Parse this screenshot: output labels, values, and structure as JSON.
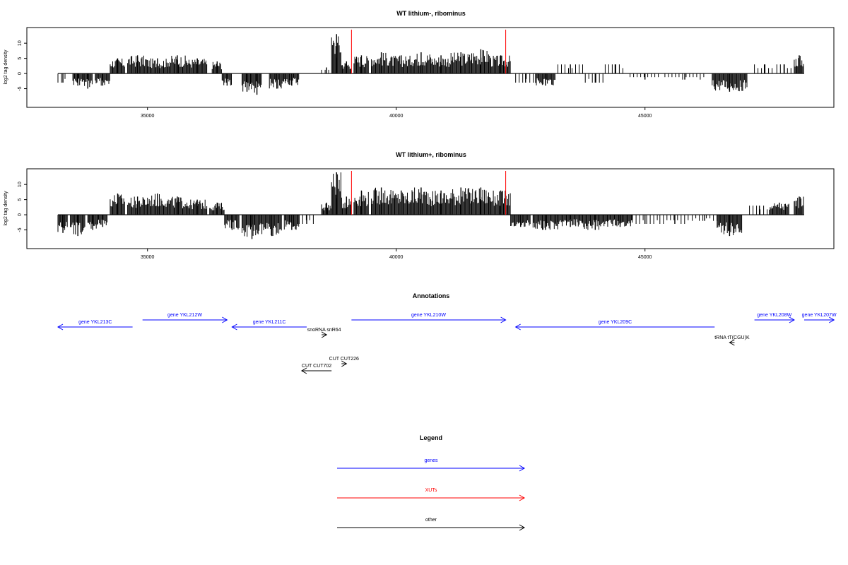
{
  "chart_data": [
    {
      "type": "bar",
      "title": "WT lithium-, ribominus",
      "xlabel": "",
      "ylabel": "log2 tag density",
      "xlim": [
        33200,
        48200
      ],
      "ylim": [
        -10,
        14
      ],
      "xticks": [
        35000,
        40000,
        45000
      ],
      "yticks": [
        -5,
        0,
        5,
        10
      ],
      "markers": [
        {
          "x": 39100,
          "color": "#ff0000"
        },
        {
          "x": 42200,
          "color": "#ff0000"
        }
      ],
      "series": [
        {
          "values": [
            {
              "x": 33300,
              "y": -3
            },
            {
              "x": 33600,
              "y": -4
            },
            {
              "x": 33800,
              "y": -5
            },
            {
              "x": 34100,
              "y": -4
            },
            {
              "x": 34400,
              "y": 5
            },
            {
              "x": 34800,
              "y": 6
            },
            {
              "x": 35200,
              "y": 5
            },
            {
              "x": 35600,
              "y": 6
            },
            {
              "x": 36000,
              "y": 5
            },
            {
              "x": 36400,
              "y": 4
            },
            {
              "x": 36600,
              "y": -4
            },
            {
              "x": 37000,
              "y": -6
            },
            {
              "x": 37200,
              "y": -7
            },
            {
              "x": 37600,
              "y": -5
            },
            {
              "x": 37900,
              "y": -4
            },
            {
              "x": 38600,
              "y": 2
            },
            {
              "x": 38800,
              "y": 13
            },
            {
              "x": 39000,
              "y": 4
            },
            {
              "x": 39300,
              "y": 6
            },
            {
              "x": 39700,
              "y": 7
            },
            {
              "x": 40100,
              "y": 6
            },
            {
              "x": 40500,
              "y": 7
            },
            {
              "x": 40900,
              "y": 6
            },
            {
              "x": 41300,
              "y": 7
            },
            {
              "x": 41700,
              "y": 8
            },
            {
              "x": 42100,
              "y": 6
            },
            {
              "x": 42600,
              "y": -3
            },
            {
              "x": 43000,
              "y": -4
            },
            {
              "x": 43500,
              "y": 3
            },
            {
              "x": 44000,
              "y": -3
            },
            {
              "x": 44400,
              "y": 3
            },
            {
              "x": 45000,
              "y": -2
            },
            {
              "x": 45800,
              "y": -2
            },
            {
              "x": 46700,
              "y": -6
            },
            {
              "x": 47400,
              "y": 3
            },
            {
              "x": 47800,
              "y": 3
            },
            {
              "x": 48100,
              "y": 6
            }
          ]
        }
      ]
    },
    {
      "type": "bar",
      "title": "WT lithium+, ribominus",
      "xlabel": "",
      "ylabel": "log2 tag density",
      "xlim": [
        33200,
        48200
      ],
      "ylim": [
        -10,
        14
      ],
      "xticks": [
        35000,
        40000,
        45000
      ],
      "yticks": [
        -5,
        0,
        5,
        10
      ],
      "markers": [
        {
          "x": 39100,
          "color": "#ff0000"
        },
        {
          "x": 42200,
          "color": "#ff0000"
        }
      ],
      "series": [
        {
          "values": [
            {
              "x": 33300,
              "y": -6
            },
            {
              "x": 33600,
              "y": -7
            },
            {
              "x": 33900,
              "y": -5
            },
            {
              "x": 34100,
              "y": -4
            },
            {
              "x": 34400,
              "y": 7
            },
            {
              "x": 34800,
              "y": 6
            },
            {
              "x": 35200,
              "y": 7
            },
            {
              "x": 35600,
              "y": 6
            },
            {
              "x": 36000,
              "y": 5
            },
            {
              "x": 36400,
              "y": 4
            },
            {
              "x": 36700,
              "y": -5
            },
            {
              "x": 37100,
              "y": -8
            },
            {
              "x": 37500,
              "y": -7
            },
            {
              "x": 37900,
              "y": -5
            },
            {
              "x": 38200,
              "y": -3
            },
            {
              "x": 38600,
              "y": 4
            },
            {
              "x": 38800,
              "y": 14
            },
            {
              "x": 39000,
              "y": 6
            },
            {
              "x": 39300,
              "y": 8
            },
            {
              "x": 39700,
              "y": 9
            },
            {
              "x": 40100,
              "y": 8
            },
            {
              "x": 40500,
              "y": 9
            },
            {
              "x": 40900,
              "y": 8
            },
            {
              "x": 41300,
              "y": 9
            },
            {
              "x": 41700,
              "y": 9
            },
            {
              "x": 42100,
              "y": 8
            },
            {
              "x": 42500,
              "y": -4
            },
            {
              "x": 43000,
              "y": -5
            },
            {
              "x": 43500,
              "y": -4
            },
            {
              "x": 44000,
              "y": -5
            },
            {
              "x": 44500,
              "y": -4
            },
            {
              "x": 45000,
              "y": -3
            },
            {
              "x": 45600,
              "y": -3
            },
            {
              "x": 46200,
              "y": -2
            },
            {
              "x": 46700,
              "y": -7
            },
            {
              "x": 47300,
              "y": 3
            },
            {
              "x": 47700,
              "y": 4
            },
            {
              "x": 48100,
              "y": 6
            }
          ]
        }
      ]
    }
  ],
  "annotations": {
    "title": "Annotations",
    "items": [
      {
        "label": "gene YKL213C",
        "start": 33200,
        "end": 34700,
        "dir": "left",
        "color": "#0000ff"
      },
      {
        "label": "gene YKL212W",
        "start": 34900,
        "end": 36600,
        "dir": "right",
        "color": "#0000ff"
      },
      {
        "label": "gene YKL211C",
        "start": 36700,
        "end": 38200,
        "dir": "left",
        "color": "#0000ff"
      },
      {
        "label": "snoRNA snR64",
        "start": 38500,
        "end": 38600,
        "dir": "right",
        "color": "#000000"
      },
      {
        "label": "gene YKL210W",
        "start": 39100,
        "end": 42200,
        "dir": "right",
        "color": "#0000ff"
      },
      {
        "label": "gene YKL209C",
        "start": 42400,
        "end": 46400,
        "dir": "left",
        "color": "#0000ff"
      },
      {
        "label": "tRNA tT(CGU)K",
        "start": 46700,
        "end": 46800,
        "dir": "left",
        "color": "#000000"
      },
      {
        "label": "gene YKL208W",
        "start": 47200,
        "end": 48000,
        "dir": "right",
        "color": "#0000ff"
      },
      {
        "label": "gene YKL207W",
        "start": 48200,
        "end": 48800,
        "dir": "right",
        "color": "#0000ff"
      },
      {
        "label": "CUT CUT226",
        "start": 38900,
        "end": 39000,
        "dir": "right",
        "color": "#000000"
      },
      {
        "label": "CUT CUT702",
        "start": 38100,
        "end": 38700,
        "dir": "left",
        "color": "#000000"
      }
    ]
  },
  "legend": {
    "title": "Legend",
    "items": [
      {
        "label": "genes",
        "color": "#0000ff"
      },
      {
        "label": "XUTs",
        "color": "#ff0000"
      },
      {
        "label": "other",
        "color": "#000000"
      }
    ]
  }
}
